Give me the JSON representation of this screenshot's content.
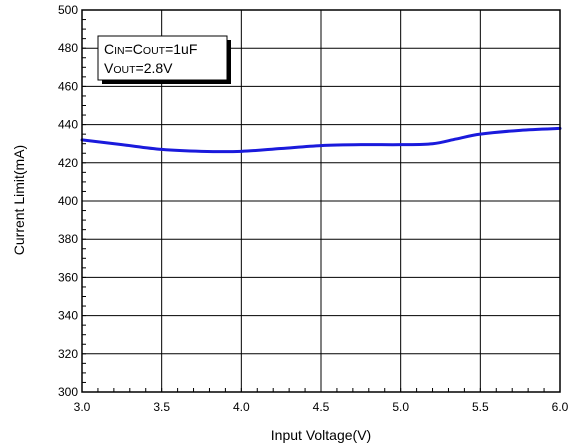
{
  "chart_data": {
    "type": "line",
    "title": "",
    "xlabel": "Input Voltage(V)",
    "ylabel": "Current Limit(mA)",
    "xlim": [
      3.0,
      6.0
    ],
    "ylim": [
      300,
      500
    ],
    "xticks": [
      "3.0",
      "3.5",
      "4.0",
      "4.5",
      "5.0",
      "5.5",
      "6.0"
    ],
    "yticks": [
      "300",
      "320",
      "340",
      "360",
      "380",
      "400",
      "420",
      "440",
      "460",
      "480",
      "500"
    ],
    "grid": true,
    "series": [
      {
        "color": "#1a1adc",
        "x": [
          3.0,
          3.25,
          3.5,
          3.75,
          4.0,
          4.25,
          4.5,
          4.75,
          5.0,
          5.2,
          5.35,
          5.5,
          5.75,
          6.0
        ],
        "y": [
          432,
          429.5,
          427,
          426,
          426,
          427.5,
          429,
          429.5,
          429.5,
          430,
          432.5,
          435,
          437,
          438
        ]
      }
    ],
    "annotation": {
      "line1": {
        "a_cap": "C",
        "a_sub": "IN",
        "mid": "=C",
        "b_sub": "OUT",
        "tail": "=1uF"
      },
      "line2": {
        "a_cap": "V",
        "a_sub": "OUT",
        "tail": "=2.8V"
      }
    }
  }
}
